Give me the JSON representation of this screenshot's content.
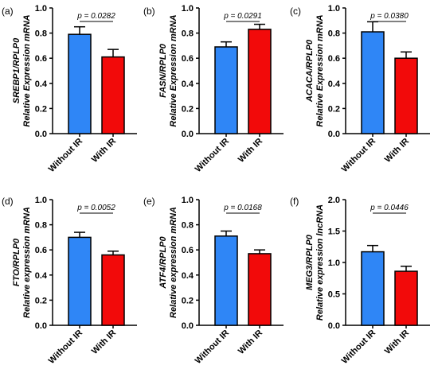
{
  "figure": {
    "colors": {
      "without_ir": "#2f86f6",
      "with_ir": "#f20a0a",
      "axis": "#000000"
    }
  },
  "chart_data": [
    {
      "panel": "(a)",
      "type": "bar",
      "categories": [
        "Without IR",
        "With IR"
      ],
      "values": [
        0.79,
        0.61
      ],
      "errors": [
        0.06,
        0.06
      ],
      "ylabel_gene": "SREBP1/RPLP0",
      "ylabel_measure": "Relative Expression mRNA",
      "ylim": [
        0,
        1.0
      ],
      "yticks": [
        "0.0",
        "0.2",
        "0.4",
        "0.6",
        "0.8",
        "1.0"
      ],
      "pvalue": "p = 0.0282",
      "grid": false
    },
    {
      "panel": "(b)",
      "type": "bar",
      "categories": [
        "Without IR",
        "With IR"
      ],
      "values": [
        0.69,
        0.83
      ],
      "errors": [
        0.04,
        0.04
      ],
      "ylabel_gene": "FASN/RPLP0",
      "ylabel_measure": "Relative Expression mRNA",
      "ylim": [
        0,
        1.0
      ],
      "yticks": [
        "0.0",
        "0.2",
        "0.4",
        "0.6",
        "0.8",
        "1.0"
      ],
      "pvalue": "p = 0.0291",
      "grid": false
    },
    {
      "panel": "(c)",
      "type": "bar",
      "categories": [
        "Without IR",
        "With IR"
      ],
      "values": [
        0.81,
        0.6
      ],
      "errors": [
        0.08,
        0.05
      ],
      "ylabel_gene": "ACACA/RPLP0",
      "ylabel_measure": "Relative Expression mRNA",
      "ylim": [
        0,
        1.0
      ],
      "yticks": [
        "0.0",
        "0.2",
        "0.4",
        "0.6",
        "0.8",
        "1.0"
      ],
      "pvalue": "p = 0.0380",
      "grid": false
    },
    {
      "panel": "(d)",
      "type": "bar",
      "categories": [
        "Without IR",
        "With IR"
      ],
      "values": [
        0.7,
        0.56
      ],
      "errors": [
        0.04,
        0.03
      ],
      "ylabel_gene": "FTO/RPLP0",
      "ylabel_measure": "Relative expression mRNA",
      "ylim": [
        0,
        1.0
      ],
      "yticks": [
        "0.0",
        "0.2",
        "0.4",
        "0.6",
        "0.8",
        "1.0"
      ],
      "pvalue": "p = 0.0052",
      "grid": false
    },
    {
      "panel": "(e)",
      "type": "bar",
      "categories": [
        "Without IR",
        "With IR"
      ],
      "values": [
        0.71,
        0.57
      ],
      "errors": [
        0.04,
        0.03
      ],
      "ylabel_gene": "ATF4/RPLP0",
      "ylabel_measure": "Relative expression mRNA",
      "ylim": [
        0,
        1.0
      ],
      "yticks": [
        "0.0",
        "0.2",
        "0.4",
        "0.6",
        "0.8",
        "1.0"
      ],
      "pvalue": "p = 0.0168",
      "grid": false
    },
    {
      "panel": "(f)",
      "type": "bar",
      "categories": [
        "Without IR",
        "With IR"
      ],
      "values": [
        1.17,
        0.86
      ],
      "errors": [
        0.1,
        0.08
      ],
      "ylabel_gene": "MEG3/RPLP0",
      "ylabel_measure": "Relative expression lncRNA",
      "ylim": [
        0,
        2.0
      ],
      "yticks": [
        "0.0",
        "0.5",
        "1.0",
        "1.5",
        "2.0"
      ],
      "pvalue": "p = 0.0446",
      "grid": false
    }
  ]
}
